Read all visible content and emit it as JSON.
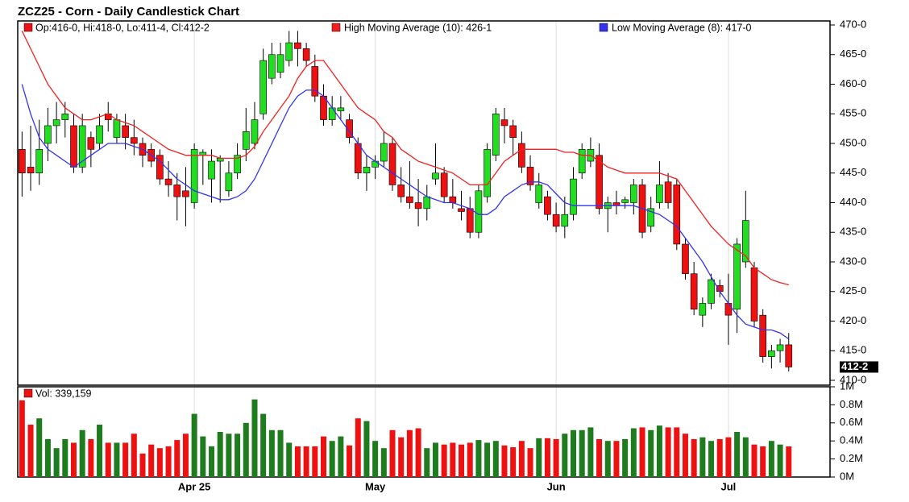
{
  "chart_data": [
    {
      "type": "candlestick",
      "title": "ZCZ25 - Corn - Daily Candlestick Chart",
      "legend_ohlc": "Op:416-0, Hi:418-0, Lo:411-4, Cl:412-2",
      "last_label": "412-2",
      "up_color": "#22dd22",
      "down_color": "#ee1111",
      "categories": [
        null,
        null,
        null,
        null,
        null,
        null,
        null,
        null,
        null,
        null,
        null,
        null,
        null,
        null,
        null,
        null,
        null,
        null,
        null,
        null,
        "Apr 25",
        null,
        null,
        null,
        null,
        null,
        null,
        null,
        null,
        null,
        null,
        null,
        null,
        null,
        null,
        null,
        null,
        null,
        null,
        null,
        null,
        "May",
        null,
        null,
        null,
        null,
        null,
        null,
        null,
        null,
        null,
        null,
        null,
        null,
        null,
        null,
        null,
        null,
        null,
        null,
        null,
        null,
        "Jun",
        null,
        null,
        null,
        null,
        null,
        null,
        null,
        null,
        null,
        null,
        null,
        null,
        null,
        null,
        null,
        null,
        null,
        null,
        null,
        "Jul",
        null,
        null,
        null,
        null,
        null,
        null,
        null
      ],
      "open": [
        449,
        446,
        445,
        450,
        453,
        454,
        453,
        446,
        451,
        450,
        455,
        451,
        453,
        451,
        450,
        449,
        448,
        444,
        443,
        442,
        440,
        448,
        444,
        447,
        442,
        445,
        449,
        450,
        455,
        461,
        462,
        464,
        467,
        466,
        463,
        458,
        454,
        455.5,
        454,
        450,
        445,
        446,
        447,
        450,
        443,
        441,
        440,
        439,
        444,
        445,
        441,
        439,
        439,
        435,
        441,
        448,
        454,
        453,
        450,
        446,
        440,
        441,
        438,
        436,
        438,
        445,
        447,
        448,
        439,
        440,
        440,
        440,
        443,
        436,
        440,
        443.5,
        443,
        433,
        428,
        421,
        423,
        426,
        423,
        422,
        430,
        429,
        421,
        414,
        415,
        416
      ],
      "high": [
        452,
        453,
        454,
        456,
        457,
        457,
        455,
        455,
        452,
        455,
        457,
        455,
        455,
        454,
        451,
        450,
        449,
        447,
        445,
        446,
        450,
        449,
        449,
        448,
        447,
        450,
        456,
        457,
        466,
        467,
        467,
        469,
        469,
        467,
        465,
        460,
        458,
        458,
        455,
        451,
        448,
        448,
        452,
        451,
        446,
        447,
        444,
        443,
        450,
        446,
        444,
        442,
        441,
        443,
        450,
        456,
        456,
        454,
        452,
        448,
        445,
        442,
        440,
        441,
        446,
        450,
        451,
        450,
        441,
        442,
        441,
        444,
        444,
        441,
        447,
        445,
        444,
        434,
        430,
        424,
        428,
        427,
        428,
        434,
        442,
        430,
        422,
        416,
        417,
        418
      ],
      "low": [
        441,
        442,
        443,
        447,
        450,
        451,
        445,
        445,
        446,
        449,
        452,
        450,
        449,
        448,
        446,
        446,
        443,
        441,
        437,
        436,
        439,
        443,
        440,
        440,
        441,
        444,
        447,
        449,
        454,
        460,
        461,
        463,
        463,
        463,
        457,
        453,
        453,
        454,
        450,
        444,
        442,
        444,
        446,
        442,
        440,
        439,
        436,
        437,
        443,
        440,
        439,
        437,
        434,
        434,
        440,
        447,
        450,
        448,
        445,
        442,
        439,
        437,
        435,
        434,
        437,
        444,
        446,
        438,
        435,
        438,
        439,
        438,
        434,
        435,
        439,
        439,
        432,
        427,
        421,
        419,
        422,
        424,
        416,
        418,
        429,
        419,
        413,
        412,
        413,
        411.5
      ],
      "close": [
        445,
        445,
        449,
        453,
        454,
        455,
        446,
        453,
        449,
        453,
        454,
        454,
        451,
        450,
        448,
        447,
        444,
        443,
        441,
        441,
        449,
        448.5,
        447,
        447.5,
        445,
        448,
        452,
        454,
        464,
        465,
        465,
        467,
        466,
        464,
        458,
        454,
        456,
        456,
        451,
        445,
        446,
        447,
        450,
        443,
        441,
        440,
        439,
        441,
        445,
        441,
        440,
        438.5,
        435,
        442,
        449,
        455,
        453,
        451,
        446,
        443,
        443,
        438,
        436,
        438,
        444,
        449,
        449,
        439,
        440,
        439.5,
        440.5,
        443,
        435,
        439,
        443,
        440,
        433,
        428,
        422,
        423,
        427,
        425,
        421,
        433,
        437,
        420,
        414,
        415,
        416,
        412.25
      ],
      "series": [
        {
          "name": "High Moving Average (10): 426-1",
          "color": "#f02020",
          "values": [
            469,
            466,
            463,
            460,
            458,
            456,
            455,
            454,
            454,
            454.5,
            455,
            454,
            453.5,
            453,
            452,
            451,
            450,
            449,
            448.5,
            448,
            448,
            448,
            448,
            447.5,
            447.5,
            447.5,
            448,
            449.5,
            452,
            454,
            456,
            458,
            461,
            463,
            464,
            464,
            462,
            460,
            458,
            456,
            455,
            454,
            452,
            451,
            449,
            448,
            447,
            446.5,
            446,
            445.5,
            445,
            444,
            443,
            443,
            443,
            445,
            447,
            448,
            449,
            449,
            449,
            449,
            449,
            448.5,
            448.5,
            448,
            448,
            447,
            446,
            445.5,
            445,
            445,
            445,
            445,
            445,
            444.5,
            444,
            442,
            440,
            438,
            436,
            434.5,
            433,
            432,
            431,
            429,
            428,
            427,
            426.5,
            426.125
          ]
        },
        {
          "name": "Low Moving Average (8): 417-0",
          "color": "#3333ee",
          "values": [
            460,
            455,
            451,
            449,
            448,
            447,
            446,
            447,
            448,
            449,
            450,
            450,
            450,
            449.5,
            449,
            448,
            447,
            445.5,
            444,
            443,
            442,
            441.5,
            441,
            440.5,
            440.5,
            441,
            442,
            444,
            447,
            450,
            453,
            456,
            458,
            459,
            459,
            458,
            456,
            454,
            452,
            450,
            448,
            447,
            446,
            445,
            444,
            443,
            442,
            441,
            440.5,
            440,
            440,
            439.5,
            439,
            438,
            438,
            439,
            441,
            442,
            443,
            443.5,
            443.5,
            443,
            441.5,
            440,
            439.5,
            439.5,
            439.5,
            439.5,
            439.5,
            439.5,
            439.5,
            439.5,
            439,
            438.5,
            438,
            437,
            436,
            434,
            432,
            430,
            427.5,
            425,
            423,
            421,
            419.5,
            419,
            418.5,
            418.5,
            418,
            417
          ]
        }
      ],
      "ylim": [
        410,
        470
      ],
      "yticks": [
        {
          "value": 410,
          "label": "410-0"
        },
        {
          "value": 415,
          "label": "415-0"
        },
        {
          "value": 420,
          "label": "420-0"
        },
        {
          "value": 425,
          "label": "425-0"
        },
        {
          "value": 430,
          "label": "430-0"
        },
        {
          "value": 435,
          "label": "435-0"
        },
        {
          "value": 440,
          "label": "440-0"
        },
        {
          "value": 445,
          "label": "445-0"
        },
        {
          "value": 450,
          "label": "450-0"
        },
        {
          "value": 455,
          "label": "455-0"
        },
        {
          "value": 460,
          "label": "460-0"
        },
        {
          "value": 465,
          "label": "465-0"
        },
        {
          "value": 470,
          "label": "470-0"
        }
      ],
      "xgrid": true
    },
    {
      "type": "bar",
      "label": "Vol: 339,159",
      "up_color": "#1e7b1e",
      "down_color": "#ee1111",
      "values": [
        0.85,
        0.58,
        0.65,
        0.42,
        0.32,
        0.42,
        0.38,
        0.52,
        0.42,
        0.58,
        0.38,
        0.38,
        0.38,
        0.48,
        0.26,
        0.36,
        0.32,
        0.34,
        0.41,
        0.48,
        0.7,
        0.45,
        0.34,
        0.5,
        0.48,
        0.48,
        0.6,
        0.86,
        0.7,
        0.52,
        0.52,
        0.38,
        0.34,
        0.34,
        0.34,
        0.45,
        0.4,
        0.45,
        0.35,
        0.65,
        0.62,
        0.4,
        0.32,
        0.52,
        0.44,
        0.52,
        0.54,
        0.32,
        0.38,
        0.36,
        0.38,
        0.36,
        0.38,
        0.41,
        0.38,
        0.4,
        0.35,
        0.33,
        0.4,
        0.32,
        0.43,
        0.43,
        0.42,
        0.48,
        0.52,
        0.52,
        0.55,
        0.42,
        0.4,
        0.4,
        0.42,
        0.54,
        0.55,
        0.52,
        0.57,
        0.55,
        0.55,
        0.48,
        0.42,
        0.44,
        0.4,
        0.42,
        0.44,
        0.5,
        0.44,
        0.36,
        0.34,
        0.4,
        0.36,
        0.339159
      ],
      "ylim": [
        0,
        1
      ],
      "yticks": [
        {
          "value": 0,
          "label": "0M"
        },
        {
          "value": 0.2,
          "label": "0.2M"
        },
        {
          "value": 0.4,
          "label": "0.4M"
        },
        {
          "value": 0.6,
          "label": "0.6M"
        },
        {
          "value": 0.8,
          "label": "0.8M"
        },
        {
          "value": 1,
          "label": "1M"
        }
      ]
    }
  ]
}
